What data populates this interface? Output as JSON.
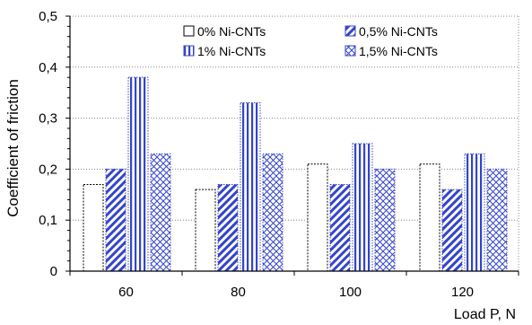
{
  "chart_data": {
    "type": "bar",
    "categories": [
      "60",
      "80",
      "100",
      "120"
    ],
    "series": [
      {
        "name": "0% Ni-CNTs",
        "values": [
          0.17,
          0.16,
          0.21,
          0.21
        ],
        "pattern": "none"
      },
      {
        "name": "0,5% Ni-CNTs",
        "values": [
          0.2,
          0.17,
          0.17,
          0.16
        ],
        "pattern": "diagonal"
      },
      {
        "name": "1% Ni-CNTs",
        "values": [
          0.38,
          0.33,
          0.25,
          0.23
        ],
        "pattern": "vertical"
      },
      {
        "name": "1,5% Ni-CNTs",
        "values": [
          0.23,
          0.23,
          0.2,
          0.2
        ],
        "pattern": "crosshatch"
      }
    ],
    "yticks": [
      "0",
      "0,1",
      "0,2",
      "0,3",
      "0,4",
      "0,5"
    ],
    "ylim": [
      0,
      0.5
    ],
    "xlabel": "Load P, N",
    "ylabel": "Coefficient of friction",
    "grid": "horizontal dotted",
    "legend_position": "top"
  },
  "colors": {
    "pattern_blue": "#3344cc",
    "outline": "#000000",
    "grid": "#888888"
  }
}
